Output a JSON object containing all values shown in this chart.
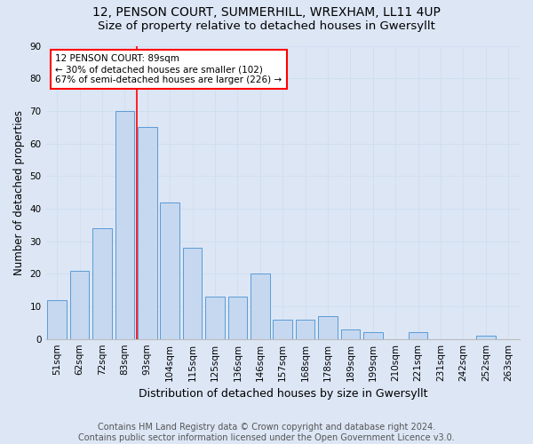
{
  "title1": "12, PENSON COURT, SUMMERHILL, WREXHAM, LL11 4UP",
  "title2": "Size of property relative to detached houses in Gwersyllt",
  "xlabel": "Distribution of detached houses by size in Gwersyllt",
  "ylabel": "Number of detached properties",
  "categories": [
    "51sqm",
    "62sqm",
    "72sqm",
    "83sqm",
    "93sqm",
    "104sqm",
    "115sqm",
    "125sqm",
    "136sqm",
    "146sqm",
    "157sqm",
    "168sqm",
    "178sqm",
    "189sqm",
    "199sqm",
    "210sqm",
    "221sqm",
    "231sqm",
    "242sqm",
    "252sqm",
    "263sqm"
  ],
  "values": [
    12,
    21,
    34,
    70,
    65,
    42,
    28,
    13,
    13,
    20,
    6,
    6,
    7,
    3,
    2,
    0,
    2,
    0,
    0,
    1,
    0
  ],
  "bar_color": "#c5d8f0",
  "bar_edge_color": "#5b9bd5",
  "annotation_text": "12 PENSON COURT: 89sqm\n← 30% of detached houses are smaller (102)\n67% of semi-detached houses are larger (226) →",
  "annotation_box_color": "white",
  "annotation_box_edge": "red",
  "vline_color": "red",
  "vline_x_index": 3.55,
  "ylim": [
    0,
    90
  ],
  "yticks": [
    0,
    10,
    20,
    30,
    40,
    50,
    60,
    70,
    80,
    90
  ],
  "grid_color": "#d0dff0",
  "background_color": "#dce6f5",
  "footer": "Contains HM Land Registry data © Crown copyright and database right 2024.\nContains public sector information licensed under the Open Government Licence v3.0.",
  "title1_fontsize": 10,
  "title2_fontsize": 9.5,
  "xlabel_fontsize": 9,
  "ylabel_fontsize": 8.5,
  "tick_fontsize": 7.5,
  "annotation_fontsize": 7.5,
  "footer_fontsize": 7
}
